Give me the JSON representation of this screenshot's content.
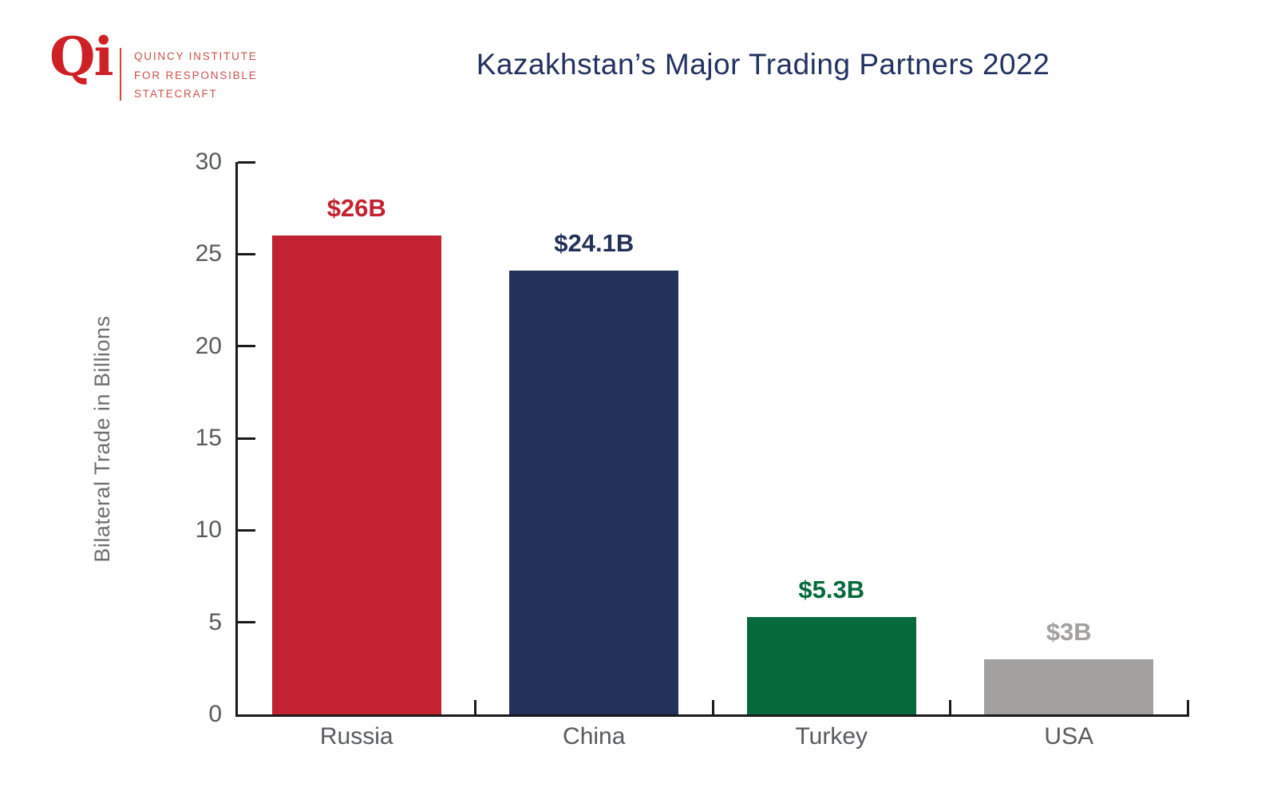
{
  "logo": {
    "monogram": "Qi",
    "lines": [
      "QUINCY INSTITUTE",
      "FOR RESPONSIBLE",
      "STATECRAFT"
    ]
  },
  "header": {
    "title": "Kazakhstan’s Major Trading Partners 2022"
  },
  "colors": {
    "logo_red": "#CE2127",
    "wordmark_red": "#C9524C",
    "title_navy": "#233161",
    "axis_black": "#1A1A1A",
    "tick_label_gray": "#595A5C",
    "axis_title_gray": "#6F6F6F"
  },
  "chart_data": {
    "type": "bar",
    "title": "Kazakhstan’s Major Trading Partners 2022",
    "categories": [
      "Russia",
      "China",
      "Turkey",
      "USA"
    ],
    "values": [
      26,
      24.1,
      5.3,
      3
    ],
    "value_labels": [
      "$26B",
      "$24.1B",
      "$5.3B",
      "$3B"
    ],
    "colors": [
      "#C32330",
      "#243159",
      "#046A3C",
      "#A3A1A0"
    ],
    "xlabel": "",
    "ylabel": "Bilateral Trade in Billions",
    "ylim": [
      0,
      30
    ],
    "yticks": [
      0,
      5,
      10,
      15,
      20,
      25,
      30
    ],
    "grid": false,
    "legend": null,
    "axis_color": "#1A1A1A",
    "tick_label_color": "#595A5C"
  }
}
